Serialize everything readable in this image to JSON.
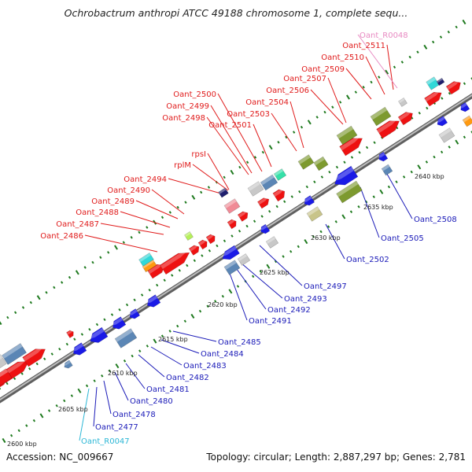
{
  "title": "Ochrobactrum anthropi ATCC 49188 chromosome 1, complete sequ...",
  "footer": {
    "accession": "Accession: NC_009667",
    "summary": "Topology: circular; Length: 2,887,297 bp; Genes: 2,781"
  },
  "colors": {
    "forward_label": "#e01b1b",
    "reverse_label": "#1a1ab8",
    "rna_label": "#2cb7d6",
    "pseudo_label": "#e88ac2",
    "backbone": "#8c8c8c",
    "tick": "#1f7a1f",
    "gene_red": "#ee1111",
    "gene_blue": "#1a1ae6",
    "gene_steel": "#5b86b5",
    "gene_olive": "#7d9a2f",
    "gene_cyan": "#30d8d8",
    "gene_orange": "#ff9a10",
    "gene_grey": "#c8c8c8",
    "gene_pink": "#f08a96",
    "gene_navy": "#1f1f6e",
    "gene_teal": "#34e0a8",
    "gene_khaki": "#c8c48a",
    "gene_lime": "#b6f05a"
  },
  "scale_labels": [
    "2600 kbp",
    "2605 kbp",
    "2610 kbp",
    "2615 kbp",
    "2620 kbp",
    "2625 kbp",
    "2630 kbp",
    "2635 kbp",
    "2640 kbp"
  ],
  "forward_genes": [
    "Oant_2486",
    "Oant_2487",
    "Oant_2488",
    "Oant_2489",
    "Oant_2490",
    "Oant_2494",
    "rplM",
    "rpsI",
    "Oant_2498",
    "Oant_2499",
    "Oant_2500",
    "Oant_2501",
    "Oant_2503",
    "Oant_2504",
    "Oant_2506",
    "Oant_2507",
    "Oant_2509",
    "Oant_2510",
    "Oant_2511"
  ],
  "reverse_genes": [
    "Oant_2477",
    "Oant_2478",
    "Oant_2480",
    "Oant_2481",
    "Oant_2482",
    "Oant_2483",
    "Oant_2484",
    "Oant_2485",
    "Oant_2491",
    "Oant_2492",
    "Oant_2493",
    "Oant_2497",
    "Oant_2502",
    "Oant_2505",
    "Oant_2508"
  ],
  "rna_genes": [
    "Oant_R0047"
  ],
  "pseudo_genes": [
    "Oant_R0048"
  ]
}
